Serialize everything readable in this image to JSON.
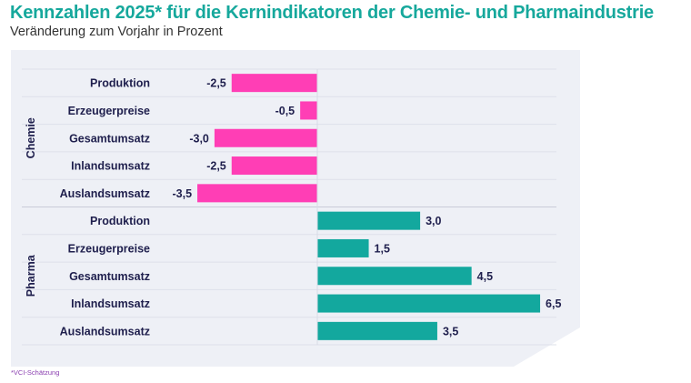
{
  "title": "Kennzahlen 2025* für die Kernindikatoren der Chemie- und Pharmaindustrie",
  "subtitle": "Veränderung zum Vorjahr in Prozent",
  "footnote": "*VCI-Schätzung",
  "chart_data": {
    "type": "bar",
    "orientation": "horizontal",
    "grid": false,
    "groups": [
      {
        "name": "Chemie",
        "color": "#ff3eb5",
        "categories": [
          "Produktion",
          "Erzeugerpreise",
          "Gesamtumsatz",
          "Inlandsumsatz",
          "Auslandsumsatz"
        ],
        "values": [
          -2.5,
          -0.5,
          -3.0,
          -2.5,
          -3.5
        ],
        "labels": [
          "-2,5",
          "-0,5",
          "-3,0",
          "-2,5",
          "-3,5"
        ]
      },
      {
        "name": "Pharma",
        "color": "#13a89e",
        "categories": [
          "Produktion",
          "Erzeugerpreise",
          "Gesamtumsatz",
          "Inlandsumsatz",
          "Auslandsumsatz"
        ],
        "values": [
          3.0,
          1.5,
          4.5,
          6.5,
          3.5
        ],
        "labels": [
          "3,0",
          "1,5",
          "4,5",
          "6,5",
          "3,5"
        ]
      }
    ]
  }
}
